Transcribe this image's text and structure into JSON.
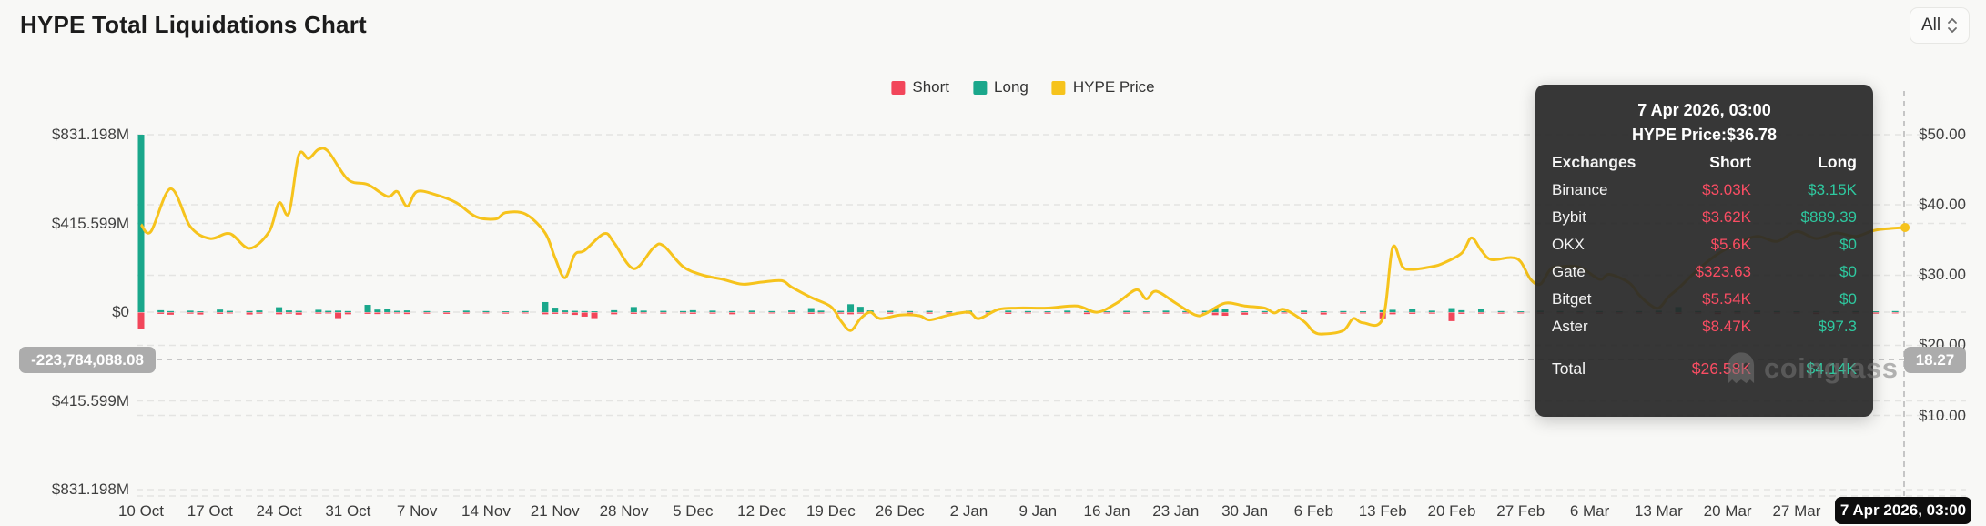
{
  "header": {
    "title": "HYPE Total Liquidations Chart",
    "range_selector": "All"
  },
  "legend": [
    {
      "label": "Short",
      "color": "#f2465a"
    },
    {
      "label": "Long",
      "color": "#1aa78b"
    },
    {
      "label": "HYPE Price",
      "color": "#f6c31c"
    }
  ],
  "colors": {
    "background": "#f8f8f6",
    "short": "#f2465a",
    "long": "#1aa78b",
    "price_line": "#f6c31c",
    "grid": "#e4e4e2",
    "crosshair": "#b5b5b5",
    "pill_gray": "#acacac",
    "pill_black": "#0d0d0d",
    "tooltip_bg": "rgba(40,40,40,0.93)",
    "tooltip_short": "#fb4d63",
    "tooltip_long": "#2ec9a0"
  },
  "chart_data": {
    "type": "bar-line-combo",
    "title": "HYPE Total Liquidations Chart",
    "legend_entries": [
      "Short",
      "Long",
      "HYPE Price"
    ],
    "x_ticks": [
      "10 Oct",
      "17 Oct",
      "24 Oct",
      "31 Oct",
      "7 Nov",
      "14 Nov",
      "21 Nov",
      "28 Nov",
      "5 Dec",
      "12 Dec",
      "19 Dec",
      "26 Dec",
      "2 Jan",
      "9 Jan",
      "16 Jan",
      "23 Jan",
      "30 Jan",
      "6 Feb",
      "13 Feb",
      "20 Feb",
      "27 Feb",
      "6 Mar",
      "13 Mar",
      "20 Mar",
      "27 Mar"
    ],
    "left_axis": {
      "unit": "USD liquidations, millions",
      "ticks": [
        {
          "label": "$831.198M",
          "value": 831.198
        },
        {
          "label": "$415.599M",
          "value": 415.599
        },
        {
          "label": "$0",
          "value": 0
        },
        {
          "label": "$415.599M",
          "value": -415.599
        },
        {
          "label": "$831.198M",
          "value": -831.198
        }
      ]
    },
    "right_axis": {
      "unit": "HYPE price, USD",
      "ticks": [
        {
          "label": "$50.00",
          "value": 50
        },
        {
          "label": "$40.00",
          "value": 40
        },
        {
          "label": "$30.00",
          "value": 30
        },
        {
          "label": "$20.00",
          "value": 20
        },
        {
          "label": "$10.00",
          "value": 10
        }
      ]
    },
    "crosshair": {
      "left_value": "-223,784,088.08",
      "right_value": "18.27",
      "bottom_value": "7 Apr 2026, 03:00"
    },
    "bars_unit_M": "day_index, long_M, short_M (short plotted downward)",
    "bars": [
      [
        0,
        831.198,
        75
      ],
      [
        2,
        9,
        6
      ],
      [
        3,
        5,
        10
      ],
      [
        5,
        7,
        5
      ],
      [
        6,
        4,
        9
      ],
      [
        8,
        12,
        6
      ],
      [
        9,
        6,
        4
      ],
      [
        11,
        5,
        9
      ],
      [
        12,
        8,
        5
      ],
      [
        14,
        23,
        8
      ],
      [
        15,
        8,
        5
      ],
      [
        16,
        6,
        10
      ],
      [
        18,
        11,
        5
      ],
      [
        19,
        6,
        4
      ],
      [
        20,
        7,
        26
      ],
      [
        21,
        5,
        8
      ],
      [
        23,
        34,
        6
      ],
      [
        24,
        12,
        7
      ],
      [
        25,
        16,
        5
      ],
      [
        26,
        6,
        4
      ],
      [
        27,
        8,
        7
      ],
      [
        29,
        5,
        5
      ],
      [
        31,
        4,
        6
      ],
      [
        33,
        7,
        5
      ],
      [
        35,
        5,
        4
      ],
      [
        37,
        4,
        5
      ],
      [
        39,
        5,
        4
      ],
      [
        41,
        47,
        8
      ],
      [
        42,
        21,
        6
      ],
      [
        43,
        8,
        5
      ],
      [
        44,
        6,
        11
      ],
      [
        45,
        5,
        19
      ],
      [
        46,
        4,
        26
      ],
      [
        48,
        9,
        8
      ],
      [
        50,
        24,
        6
      ],
      [
        51,
        7,
        4
      ],
      [
        53,
        6,
        5
      ],
      [
        55,
        5,
        4
      ],
      [
        56,
        9,
        6
      ],
      [
        58,
        7,
        5
      ],
      [
        60,
        5,
        8
      ],
      [
        62,
        7,
        5
      ],
      [
        64,
        5,
        4
      ],
      [
        66,
        8,
        5
      ],
      [
        68,
        19,
        6
      ],
      [
        69,
        7,
        4
      ],
      [
        71,
        6,
        5
      ],
      [
        72,
        37,
        8
      ],
      [
        73,
        25,
        5
      ],
      [
        74,
        8,
        4
      ],
      [
        76,
        6,
        5
      ],
      [
        78,
        5,
        4
      ],
      [
        80,
        6,
        5
      ],
      [
        82,
        4,
        4
      ],
      [
        84,
        7,
        5
      ],
      [
        86,
        5,
        4
      ],
      [
        88,
        7,
        6
      ],
      [
        90,
        5,
        4
      ],
      [
        92,
        4,
        5
      ],
      [
        94,
        7,
        4
      ],
      [
        96,
        5,
        7
      ],
      [
        98,
        4,
        4
      ],
      [
        100,
        6,
        5
      ],
      [
        102,
        4,
        4
      ],
      [
        104,
        7,
        5
      ],
      [
        106,
        5,
        4
      ],
      [
        108,
        6,
        5
      ],
      [
        109,
        21,
        12
      ],
      [
        110,
        13,
        15
      ],
      [
        112,
        4,
        10
      ],
      [
        114,
        5,
        5
      ],
      [
        116,
        4,
        4
      ],
      [
        118,
        7,
        6
      ],
      [
        120,
        4,
        9
      ],
      [
        122,
        5,
        5
      ],
      [
        124,
        4,
        4
      ],
      [
        126,
        9,
        27
      ],
      [
        127,
        11,
        8
      ],
      [
        129,
        17,
        6
      ],
      [
        131,
        7,
        5
      ],
      [
        133,
        19,
        40
      ],
      [
        134,
        9,
        6
      ],
      [
        136,
        13,
        5
      ],
      [
        138,
        5,
        5
      ],
      [
        140,
        4,
        4
      ],
      [
        142,
        7,
        5
      ],
      [
        144,
        5,
        4
      ],
      [
        146,
        4,
        4
      ],
      [
        148,
        5,
        5
      ],
      [
        150,
        4,
        4
      ],
      [
        152,
        5,
        4
      ],
      [
        154,
        7,
        5
      ],
      [
        156,
        24,
        6
      ],
      [
        158,
        5,
        4
      ],
      [
        160,
        4,
        7
      ],
      [
        162,
        5,
        4
      ],
      [
        164,
        7,
        5
      ],
      [
        166,
        5,
        4
      ],
      [
        168,
        4,
        4
      ],
      [
        170,
        5,
        7
      ],
      [
        172,
        4,
        4
      ],
      [
        174,
        5,
        4
      ],
      [
        176,
        4,
        5
      ],
      [
        178,
        5,
        4
      ]
    ],
    "price_points": [
      [
        0,
        37.2
      ],
      [
        1,
        36.2
      ],
      [
        3,
        42.3
      ],
      [
        5,
        36.9
      ],
      [
        7,
        35.2
      ],
      [
        9,
        35.9
      ],
      [
        11,
        33.8
      ],
      [
        13,
        36.2
      ],
      [
        14,
        40.3
      ],
      [
        15,
        38.8
      ],
      [
        16,
        47.1
      ],
      [
        17,
        46.6
      ],
      [
        18,
        47.9
      ],
      [
        19,
        47.6
      ],
      [
        21,
        43.6
      ],
      [
        23,
        42.9
      ],
      [
        25,
        41.2
      ],
      [
        26,
        41.9
      ],
      [
        27,
        39.8
      ],
      [
        28,
        41.9
      ],
      [
        30,
        41.4
      ],
      [
        32,
        40.3
      ],
      [
        34,
        38.3
      ],
      [
        36,
        38.0
      ],
      [
        37,
        38.9
      ],
      [
        39,
        38.7
      ],
      [
        41,
        36.0
      ],
      [
        42,
        32.5
      ],
      [
        43,
        29.6
      ],
      [
        44,
        32.9
      ],
      [
        45,
        33.5
      ],
      [
        47,
        35.9
      ],
      [
        48,
        34.6
      ],
      [
        50,
        30.9
      ],
      [
        52,
        33.9
      ],
      [
        53,
        34.2
      ],
      [
        55,
        31.2
      ],
      [
        57,
        30.0
      ],
      [
        59,
        29.4
      ],
      [
        61,
        28.7
      ],
      [
        63,
        29.0
      ],
      [
        65,
        29.2
      ],
      [
        66,
        28.3
      ],
      [
        68,
        26.8
      ],
      [
        70,
        25.5
      ],
      [
        71,
        23.5
      ],
      [
        72,
        22.1
      ],
      [
        73,
        23.8
      ],
      [
        74,
        24.7
      ],
      [
        75,
        23.8
      ],
      [
        77,
        24.3
      ],
      [
        79,
        24.2
      ],
      [
        80,
        23.6
      ],
      [
        82,
        24.3
      ],
      [
        84,
        24.7
      ],
      [
        85,
        23.8
      ],
      [
        87,
        25.1
      ],
      [
        89,
        25.3
      ],
      [
        92,
        25.3
      ],
      [
        95,
        25.6
      ],
      [
        97,
        24.7
      ],
      [
        99,
        26.0
      ],
      [
        101,
        27.9
      ],
      [
        102,
        26.6
      ],
      [
        103,
        27.7
      ],
      [
        105,
        26.0
      ],
      [
        107,
        24.3
      ],
      [
        108,
        24.5
      ],
      [
        110,
        26.0
      ],
      [
        112,
        25.6
      ],
      [
        114,
        25.3
      ],
      [
        115,
        24.6
      ],
      [
        116,
        25.1
      ],
      [
        118,
        23.4
      ],
      [
        119,
        21.9
      ],
      [
        120,
        21.6
      ],
      [
        122,
        22.1
      ],
      [
        123,
        23.8
      ],
      [
        124,
        23.2
      ],
      [
        126,
        23.8
      ],
      [
        127,
        33.9
      ],
      [
        128,
        31.2
      ],
      [
        129,
        30.8
      ],
      [
        131,
        31.2
      ],
      [
        132,
        31.6
      ],
      [
        134,
        33.1
      ],
      [
        135,
        35.3
      ],
      [
        136,
        33.5
      ],
      [
        137,
        32.2
      ],
      [
        139,
        32.5
      ],
      [
        140,
        31.9
      ],
      [
        141,
        29.4
      ],
      [
        142,
        28.7
      ],
      [
        143,
        30.8
      ],
      [
        144,
        31.2
      ],
      [
        146,
        31.1
      ],
      [
        148,
        29.4
      ],
      [
        149,
        30.1
      ],
      [
        151,
        28.9
      ],
      [
        152,
        27.2
      ],
      [
        153,
        25.9
      ],
      [
        154,
        25.3
      ],
      [
        155,
        26.9
      ],
      [
        156,
        28.1
      ],
      [
        158,
        30.8
      ],
      [
        160,
        33.0
      ],
      [
        162,
        34.5
      ],
      [
        164,
        35.5
      ],
      [
        166,
        34.8
      ],
      [
        168,
        36.2
      ],
      [
        170,
        35.2
      ],
      [
        172,
        36.0
      ],
      [
        174,
        35.5
      ],
      [
        176,
        36.4
      ],
      [
        179,
        36.78
      ]
    ]
  },
  "tooltip": {
    "date": "7 Apr 2026, 03:00",
    "price_line": "HYPE Price:$36.78",
    "columns": [
      "Exchanges",
      "Short",
      "Long"
    ],
    "rows": [
      {
        "exchange": "Binance",
        "short": "$3.03K",
        "long": "$3.15K"
      },
      {
        "exchange": "Bybit",
        "short": "$3.62K",
        "long": "$889.39"
      },
      {
        "exchange": "OKX",
        "short": "$5.6K",
        "long": "$0"
      },
      {
        "exchange": "Gate",
        "short": "$323.63",
        "long": "$0"
      },
      {
        "exchange": "Bitget",
        "short": "$5.54K",
        "long": "$0"
      },
      {
        "exchange": "Aster",
        "short": "$8.47K",
        "long": "$97.3"
      }
    ],
    "total": {
      "label": "Total",
      "short": "$26.58K",
      "long": "$4.14K"
    }
  },
  "watermark": "coinglass"
}
